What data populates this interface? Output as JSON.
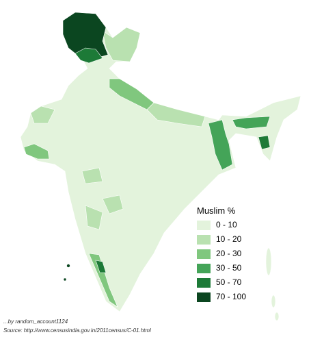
{
  "legend": {
    "title": "Muslim %",
    "items": [
      {
        "label": "0 - 10",
        "color": "#e3f3dc"
      },
      {
        "label": "10 - 20",
        "color": "#b9e1b0"
      },
      {
        "label": "20 - 30",
        "color": "#80c77e"
      },
      {
        "label": "30 - 50",
        "color": "#44a458"
      },
      {
        "label": "50 - 70",
        "color": "#1d7a37"
      },
      {
        "label": "70 - 100",
        "color": "#0b4620"
      }
    ]
  },
  "credits": {
    "author": "...by random_account1124",
    "source": "Source: http://www.censusindia.gov.in/2011census/C-01.html"
  }
}
